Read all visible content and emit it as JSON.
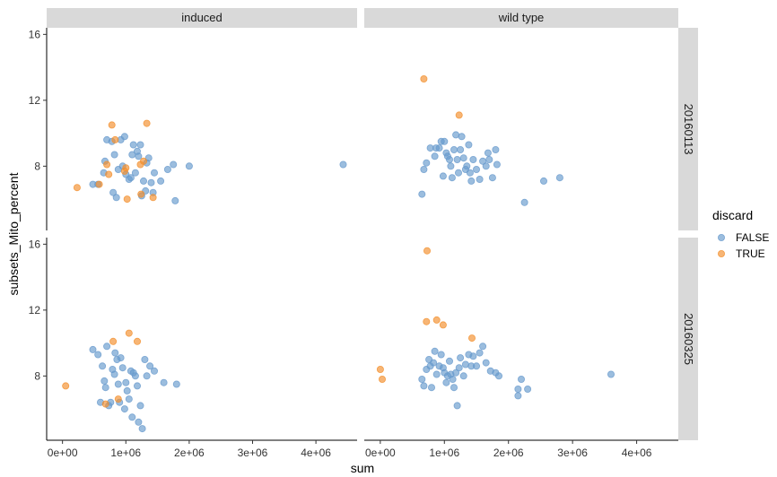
{
  "chart_data": {
    "type": "scatter",
    "title": "",
    "xlabel": "sum",
    "ylabel": "subsets_Mito_percent",
    "xlim": [
      -250000,
      4650000
    ],
    "x_ticks": [
      0,
      1000000,
      2000000,
      3000000,
      4000000
    ],
    "x_tick_labels": [
      "0e+00",
      "1e+06",
      "2e+06",
      "3e+06",
      "4e+06"
    ],
    "ylim": [
      4.1,
      16.4
    ],
    "y_ticks": [
      8,
      12,
      16
    ],
    "y_tick_labels": [
      "8",
      "12",
      "16"
    ],
    "grid": false,
    "facet_cols": [
      "induced",
      "wild type"
    ],
    "facet_rows": [
      "20160113",
      "20160325"
    ],
    "legend": {
      "title": "discard",
      "position": "right",
      "entries": [
        {
          "label": "FALSE",
          "color": "#6699CC"
        },
        {
          "label": "TRUE",
          "color": "#F28E2B"
        }
      ]
    },
    "panels": [
      {
        "col": "induced",
        "row": "20160113",
        "series": [
          {
            "name": "FALSE",
            "points": [
              [
                480000,
                6.9
              ],
              [
                560000,
                6.9
              ],
              [
                650000,
                7.6
              ],
              [
                670000,
                8.3
              ],
              [
                700000,
                9.6
              ],
              [
                780000,
                9.5
              ],
              [
                800000,
                6.4
              ],
              [
                820000,
                8.7
              ],
              [
                850000,
                6.1
              ],
              [
                880000,
                7.8
              ],
              [
                920000,
                9.6
              ],
              [
                980000,
                9.8
              ],
              [
                950000,
                8.0
              ],
              [
                1000000,
                7.5
              ],
              [
                1050000,
                7.2
              ],
              [
                1080000,
                7.3
              ],
              [
                1100000,
                8.7
              ],
              [
                1120000,
                9.3
              ],
              [
                1150000,
                7.6
              ],
              [
                1180000,
                8.9
              ],
              [
                1200000,
                8.6
              ],
              [
                1230000,
                9.3
              ],
              [
                1250000,
                6.2
              ],
              [
                1280000,
                7.1
              ],
              [
                1310000,
                6.5
              ],
              [
                1330000,
                8.2
              ],
              [
                1360000,
                8.5
              ],
              [
                1400000,
                7.0
              ],
              [
                1430000,
                6.4
              ],
              [
                1450000,
                7.6
              ],
              [
                1550000,
                7.1
              ],
              [
                1660000,
                7.8
              ],
              [
                1750000,
                8.1
              ],
              [
                1780000,
                5.9
              ],
              [
                2000000,
                8.0
              ],
              [
                4430000,
                8.1
              ]
            ]
          },
          {
            "name": "TRUE",
            "points": [
              [
                230000,
                6.7
              ],
              [
                580000,
                6.9
              ],
              [
                700000,
                8.1
              ],
              [
                730000,
                7.5
              ],
              [
                780000,
                10.5
              ],
              [
                830000,
                9.6
              ],
              [
                980000,
                7.7
              ],
              [
                1000000,
                7.9
              ],
              [
                1020000,
                6.0
              ],
              [
                1230000,
                8.1
              ],
              [
                1240000,
                6.3
              ],
              [
                1280000,
                8.3
              ],
              [
                1330000,
                10.6
              ],
              [
                1430000,
                6.1
              ]
            ]
          }
        ]
      },
      {
        "col": "wild type",
        "row": "20160113",
        "series": [
          {
            "name": "FALSE",
            "points": [
              [
                650000,
                6.3
              ],
              [
                680000,
                7.8
              ],
              [
                720000,
                8.2
              ],
              [
                780000,
                9.1
              ],
              [
                850000,
                8.6
              ],
              [
                870000,
                9.1
              ],
              [
                920000,
                9.1
              ],
              [
                950000,
                9.5
              ],
              [
                980000,
                7.4
              ],
              [
                1000000,
                9.5
              ],
              [
                1030000,
                8.8
              ],
              [
                1050000,
                8.6
              ],
              [
                1080000,
                8.4
              ],
              [
                1100000,
                8.0
              ],
              [
                1120000,
                7.3
              ],
              [
                1150000,
                9.0
              ],
              [
                1180000,
                9.9
              ],
              [
                1200000,
                8.4
              ],
              [
                1220000,
                7.6
              ],
              [
                1250000,
                9.0
              ],
              [
                1270000,
                9.8
              ],
              [
                1300000,
                8.5
              ],
              [
                1330000,
                7.8
              ],
              [
                1350000,
                8.0
              ],
              [
                1380000,
                9.3
              ],
              [
                1400000,
                7.6
              ],
              [
                1420000,
                7.1
              ],
              [
                1450000,
                8.4
              ],
              [
                1500000,
                7.8
              ],
              [
                1550000,
                7.2
              ],
              [
                1600000,
                8.3
              ],
              [
                1650000,
                8.0
              ],
              [
                1680000,
                8.8
              ],
              [
                1700000,
                8.4
              ],
              [
                1750000,
                7.3
              ],
              [
                1800000,
                9.0
              ],
              [
                1820000,
                8.1
              ],
              [
                2250000,
                5.8
              ],
              [
                2550000,
                7.1
              ],
              [
                2800000,
                7.3
              ]
            ]
          },
          {
            "name": "TRUE",
            "points": [
              [
                680000,
                13.3
              ],
              [
                1230000,
                11.1
              ]
            ]
          }
        ]
      },
      {
        "col": "induced",
        "row": "20160325",
        "series": [
          {
            "name": "FALSE",
            "points": [
              [
                480000,
                9.6
              ],
              [
                560000,
                9.3
              ],
              [
                600000,
                6.4
              ],
              [
                630000,
                8.6
              ],
              [
                660000,
                7.7
              ],
              [
                680000,
                7.3
              ],
              [
                700000,
                9.8
              ],
              [
                730000,
                6.2
              ],
              [
                760000,
                6.4
              ],
              [
                790000,
                8.4
              ],
              [
                820000,
                8.1
              ],
              [
                830000,
                9.4
              ],
              [
                860000,
                9.0
              ],
              [
                880000,
                7.5
              ],
              [
                900000,
                6.4
              ],
              [
                920000,
                9.1
              ],
              [
                950000,
                8.5
              ],
              [
                980000,
                6.0
              ],
              [
                1000000,
                7.6
              ],
              [
                1020000,
                7.1
              ],
              [
                1050000,
                6.6
              ],
              [
                1080000,
                8.3
              ],
              [
                1100000,
                5.5
              ],
              [
                1120000,
                8.2
              ],
              [
                1150000,
                8.0
              ],
              [
                1180000,
                7.4
              ],
              [
                1200000,
                5.2
              ],
              [
                1230000,
                6.2
              ],
              [
                1260000,
                4.8
              ],
              [
                1300000,
                9.0
              ],
              [
                1330000,
                8.0
              ],
              [
                1380000,
                8.6
              ],
              [
                1450000,
                8.3
              ],
              [
                1600000,
                7.6
              ],
              [
                1800000,
                7.5
              ]
            ]
          },
          {
            "name": "TRUE",
            "points": [
              [
                50000,
                7.4
              ],
              [
                680000,
                6.3
              ],
              [
                800000,
                10.1
              ],
              [
                880000,
                6.6
              ],
              [
                1050000,
                10.6
              ],
              [
                1180000,
                10.1
              ]
            ]
          }
        ]
      },
      {
        "col": "wild type",
        "row": "20160325",
        "series": [
          {
            "name": "FALSE",
            "points": [
              [
                650000,
                7.8
              ],
              [
                680000,
                7.4
              ],
              [
                720000,
                8.4
              ],
              [
                760000,
                9.0
              ],
              [
                780000,
                8.6
              ],
              [
                800000,
                7.3
              ],
              [
                830000,
                8.8
              ],
              [
                850000,
                9.5
              ],
              [
                880000,
                8.1
              ],
              [
                920000,
                8.6
              ],
              [
                950000,
                9.3
              ],
              [
                980000,
                8.5
              ],
              [
                1000000,
                8.2
              ],
              [
                1030000,
                7.6
              ],
              [
                1050000,
                8.0
              ],
              [
                1080000,
                8.9
              ],
              [
                1100000,
                8.1
              ],
              [
                1130000,
                7.8
              ],
              [
                1150000,
                7.3
              ],
              [
                1180000,
                8.2
              ],
              [
                1200000,
                6.2
              ],
              [
                1230000,
                8.5
              ],
              [
                1250000,
                9.1
              ],
              [
                1300000,
                8.0
              ],
              [
                1330000,
                8.7
              ],
              [
                1380000,
                9.3
              ],
              [
                1420000,
                8.6
              ],
              [
                1450000,
                9.2
              ],
              [
                1500000,
                8.6
              ],
              [
                1550000,
                9.4
              ],
              [
                1600000,
                9.8
              ],
              [
                1650000,
                8.8
              ],
              [
                1720000,
                8.3
              ],
              [
                1800000,
                8.2
              ],
              [
                1850000,
                8.0
              ],
              [
                2150000,
                6.8
              ],
              [
                2200000,
                7.8
              ],
              [
                2300000,
                7.2
              ],
              [
                2150000,
                7.2
              ],
              [
                3600000,
                8.1
              ]
            ]
          },
          {
            "name": "TRUE",
            "points": [
              [
                0,
                8.4
              ],
              [
                30000,
                7.8
              ],
              [
                720000,
                11.3
              ],
              [
                880000,
                11.4
              ],
              [
                980000,
                11.1
              ],
              [
                1430000,
                10.3
              ],
              [
                730000,
                15.6
              ]
            ]
          }
        ]
      }
    ]
  }
}
